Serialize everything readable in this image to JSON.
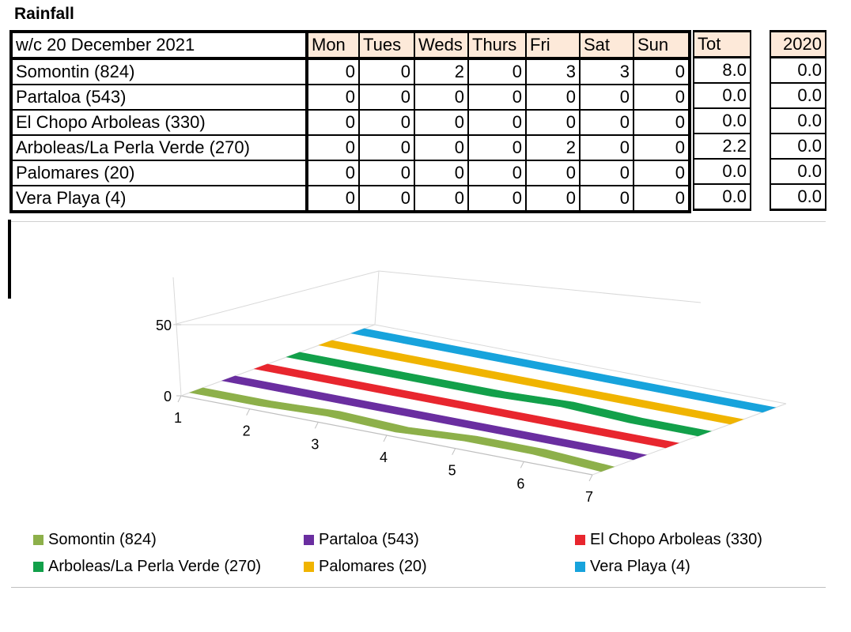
{
  "title": "Rainfall",
  "table": {
    "week_label": "w/c 20 December 2021",
    "days": [
      "Mon",
      "Tues",
      "Weds",
      "Thurs",
      "Fri",
      "Sat",
      "Sun"
    ],
    "tot_label": "Tot",
    "year_label": "2020",
    "rows": [
      {
        "name": "Somontin (824)",
        "values": [
          "0",
          "0",
          "2",
          "0",
          "3",
          "3",
          "0"
        ],
        "tot": "8.0",
        "prev": "0.0"
      },
      {
        "name": "Partaloa (543)",
        "values": [
          "0",
          "0",
          "0",
          "0",
          "0",
          "0",
          "0"
        ],
        "tot": "0.0",
        "prev": "0.0"
      },
      {
        "name": "El Chopo Arboleas (330)",
        "values": [
          "0",
          "0",
          "0",
          "0",
          "0",
          "0",
          "0"
        ],
        "tot": "0.0",
        "prev": "0.0"
      },
      {
        "name": "Arboleas/La Perla Verde (270)",
        "values": [
          "0",
          "0",
          "0",
          "0",
          "2",
          "0",
          "0"
        ],
        "tot": "2.2",
        "prev": "0.0"
      },
      {
        "name": "Palomares (20)",
        "values": [
          "0",
          "0",
          "0",
          "0",
          "0",
          "0",
          "0"
        ],
        "tot": "0.0",
        "prev": "0.0"
      },
      {
        "name": "Vera Playa (4)",
        "values": [
          "0",
          "0",
          "0",
          "0",
          "0",
          "0",
          "0"
        ],
        "tot": "0.0",
        "prev": "0.0"
      }
    ]
  },
  "chart_data": {
    "type": "area",
    "x": [
      1,
      2,
      3,
      4,
      5,
      6,
      7
    ],
    "yticks": [
      "0",
      "50"
    ],
    "ylim": [
      0,
      50
    ],
    "series": [
      {
        "name": "Somontin (824)",
        "values": [
          0,
          0,
          2,
          0,
          3,
          3,
          0
        ],
        "color": "#8db04a"
      },
      {
        "name": "Partaloa (543)",
        "values": [
          0,
          0,
          0,
          0,
          0,
          0,
          0
        ],
        "color": "#6a2ea0"
      },
      {
        "name": "El Chopo Arboleas (330)",
        "values": [
          0,
          0,
          0,
          0,
          0,
          0,
          0
        ],
        "color": "#e8262e"
      },
      {
        "name": "Arboleas/La Perla Verde (270)",
        "values": [
          0,
          0,
          0,
          0,
          2,
          0,
          0
        ],
        "color": "#12a04a"
      },
      {
        "name": "Palomares (20)",
        "values": [
          0,
          0,
          0,
          0,
          0,
          0,
          0
        ],
        "color": "#f0b400"
      },
      {
        "name": "Vera Playa (4)",
        "values": [
          0,
          0,
          0,
          0,
          0,
          0,
          0
        ],
        "color": "#17a3dc"
      }
    ],
    "legend": "bottom"
  }
}
